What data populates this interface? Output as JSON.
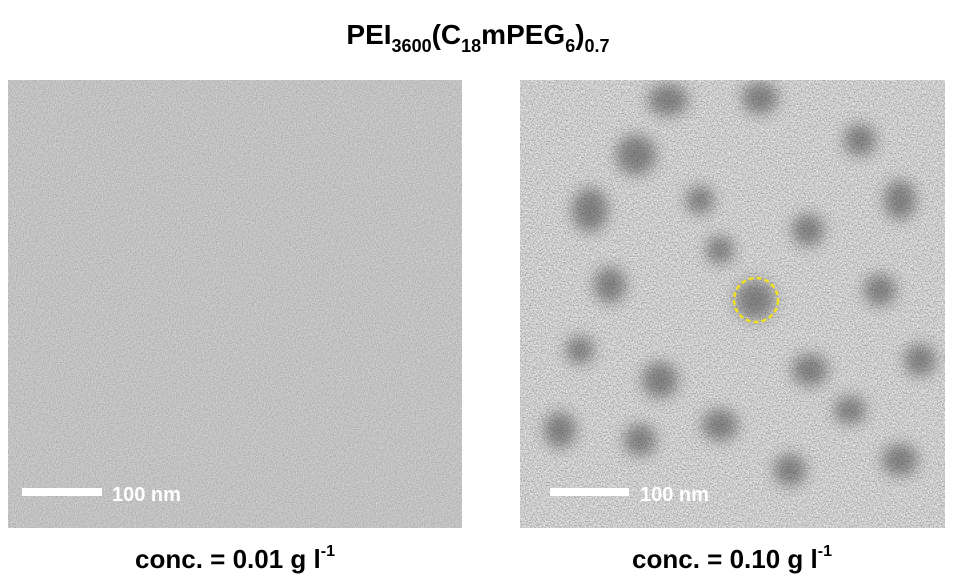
{
  "title": [
    {
      "text": "PEI",
      "sub": "3600"
    },
    {
      "text": "(C",
      "sub": "18"
    },
    {
      "text": "mPEG",
      "sub": "6"
    },
    {
      "text": ")",
      "sub": "0.7"
    }
  ],
  "panels": [
    {
      "scale_bar": "100 nm",
      "caption": "conc. = 0.01 g l",
      "caption_sup": "-1"
    },
    {
      "scale_bar": "100 nm",
      "caption": "conc. = 0.10 g l",
      "caption_sup": "-1"
    }
  ]
}
